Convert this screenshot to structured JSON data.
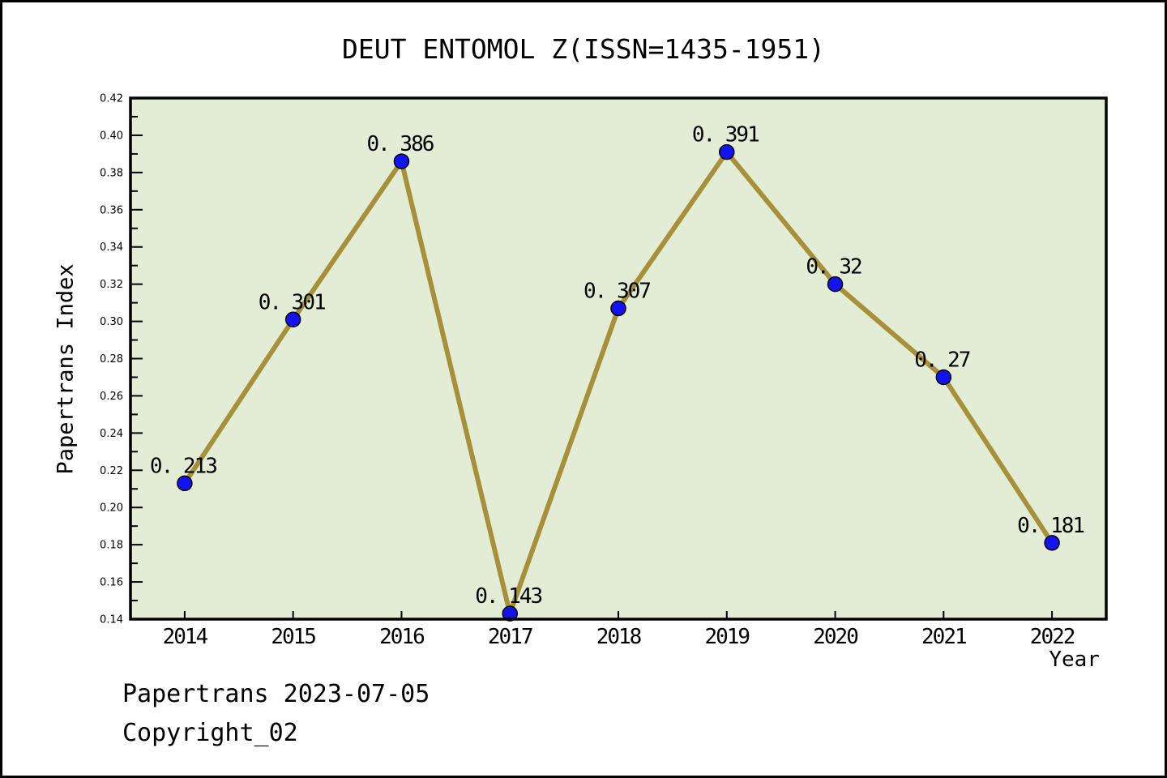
{
  "title": "DEUT ENTOMOL Z(ISSN=1435-1951)",
  "footer": {
    "line1": "Papertrans 2023-07-05",
    "line2": "Copyright_02"
  },
  "chart_data": {
    "type": "line",
    "title": "DEUT ENTOMOL Z(ISSN=1435-1951)",
    "xlabel": "Year",
    "ylabel": "Papertrans Index",
    "x": [
      2014,
      2015,
      2016,
      2017,
      2018,
      2019,
      2020,
      2021,
      2022
    ],
    "series": [
      {
        "name": "Papertrans Index",
        "values": [
          0.213,
          0.301,
          0.386,
          0.143,
          0.307,
          0.391,
          0.32,
          0.27,
          0.181
        ],
        "point_labels": [
          "0. 213",
          "0. 301",
          "0. 386",
          "0. 143",
          "0. 307",
          "0. 391",
          "0. 32",
          "0. 27",
          "0. 181"
        ]
      }
    ],
    "ylim": [
      0.14,
      0.42
    ],
    "ytick_step": 0.02,
    "yminor_step": 0.01,
    "grid": false,
    "legend": "none",
    "colors": {
      "line": "#a6913a",
      "marker_fill": "#1313ef",
      "marker_edge": "#000000",
      "plot_background": "#e3edd6",
      "page_background": "#ffffff",
      "axis": "#000000",
      "text": "#000000"
    }
  }
}
